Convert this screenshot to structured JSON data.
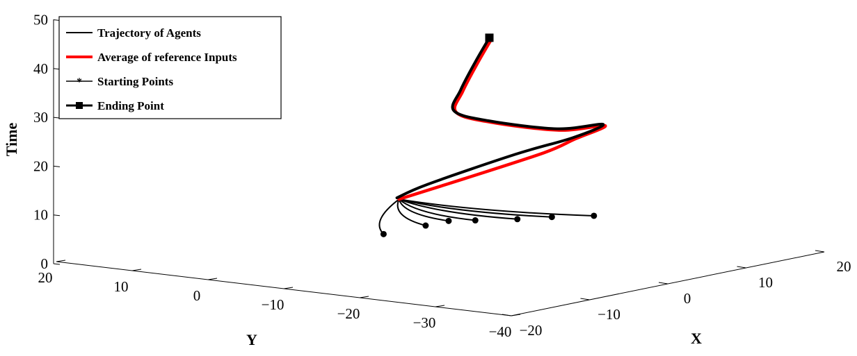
{
  "chart_data": {
    "type": "line",
    "projection": "3d",
    "xlabel": "X",
    "ylabel": "Y",
    "zlabel": "Time",
    "xlim": [
      -20,
      20
    ],
    "ylim": [
      -40,
      20
    ],
    "zlim": [
      0,
      50
    ],
    "x_ticks": [
      "−20",
      "−10",
      "0",
      "10",
      "20"
    ],
    "y_ticks": [
      "20",
      "10",
      "0",
      "−10",
      "−20",
      "−30",
      "−40"
    ],
    "z_ticks": [
      "0",
      "10",
      "20",
      "30",
      "40",
      "50"
    ],
    "grid": false,
    "legend": {
      "position": "top-left",
      "entries": [
        {
          "label": "Trajectory of Agents",
          "color": "#000000",
          "marker": "none"
        },
        {
          "label": "Average of reference Inputs",
          "color": "#ff0000",
          "marker": "none"
        },
        {
          "label": "Starting Points",
          "color": "#000000",
          "marker": "star"
        },
        {
          "label": "Ending Point",
          "color": "#000000",
          "marker": "square"
        }
      ]
    },
    "series": [
      {
        "name": "Average of reference Inputs",
        "color": "#ff0000",
        "points": [
          [
            1.5,
            -3,
            10
          ],
          [
            3,
            -10,
            15
          ],
          [
            5.5,
            -18,
            21
          ],
          [
            6.5,
            -21,
            24
          ],
          [
            7.5,
            -24,
            27
          ],
          [
            5.5,
            -20,
            26
          ],
          [
            3.5,
            -13,
            27
          ],
          [
            2,
            -10,
            29
          ],
          [
            -1,
            -14,
            35
          ],
          [
            -5,
            -20,
            43
          ],
          [
            -8,
            -25,
            50
          ]
        ]
      },
      {
        "name": "Trajectory of Agents",
        "color": "#000000",
        "points": [
          [
            1.5,
            -3,
            10
          ],
          [
            2.5,
            -6,
            13
          ],
          [
            5,
            -15,
            20
          ],
          [
            6.5,
            -21,
            24
          ],
          [
            7.5,
            -24,
            27
          ],
          [
            5.5,
            -20,
            26
          ],
          [
            3.5,
            -13,
            27
          ],
          [
            2,
            -10,
            29
          ],
          [
            -1,
            -14,
            35
          ],
          [
            -5,
            -20,
            43
          ],
          [
            -8,
            -25,
            50
          ]
        ],
        "agents": [
          {
            "start": [
              8,
              -22,
              8
            ]
          },
          {
            "start": [
              6.5,
              -18,
              7.5
            ]
          },
          {
            "start": [
              5,
              -15,
              7
            ]
          },
          {
            "start": [
              3.5,
              -11,
              6.5
            ]
          },
          {
            "start": [
              3,
              -8,
              6
            ]
          },
          {
            "start": [
              2,
              -6,
              5
            ]
          },
          {
            "start": [
              0.5,
              -2,
              3
            ]
          }
        ]
      }
    ]
  }
}
